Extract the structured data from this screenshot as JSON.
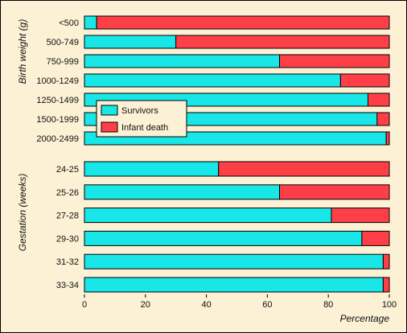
{
  "colors": {
    "survivors": "#19e6e6",
    "infant_death": "#ff3f47",
    "background": "#fcf1d5",
    "border": "#000000"
  },
  "chart_data": [
    {
      "type": "bar",
      "orientation": "horizontal",
      "stacked": true,
      "ylabel": "Birth weight (g)",
      "categories": [
        "<500",
        "500-749",
        "750-999",
        "1000-1249",
        "1250-1499",
        "1500-1999",
        "2000-2499"
      ],
      "series": [
        {
          "name": "Survivors",
          "values": [
            4,
            30,
            64,
            84,
            93,
            96,
            99
          ]
        },
        {
          "name": "Infant death",
          "values": [
            96,
            70,
            36,
            16,
            7,
            4,
            1
          ]
        }
      ],
      "xlim": [
        0,
        100
      ],
      "legend": {
        "position": "inside-left",
        "entries": [
          "Survivors",
          "Infant death"
        ]
      }
    },
    {
      "type": "bar",
      "orientation": "horizontal",
      "stacked": true,
      "ylabel": "Gestation (weeks)",
      "categories": [
        "24-25",
        "25-26",
        "27-28",
        "29-30",
        "31-32",
        "33-34"
      ],
      "series": [
        {
          "name": "Survivors",
          "values": [
            44,
            64,
            81,
            91,
            98,
            98
          ]
        },
        {
          "name": "Infant death",
          "values": [
            56,
            36,
            19,
            9,
            2,
            2
          ]
        }
      ],
      "xlim": [
        0,
        100
      ],
      "xlabel": "Percentage",
      "xticks": [
        "0",
        "20",
        "40",
        "60",
        "80",
        "100"
      ]
    }
  ]
}
